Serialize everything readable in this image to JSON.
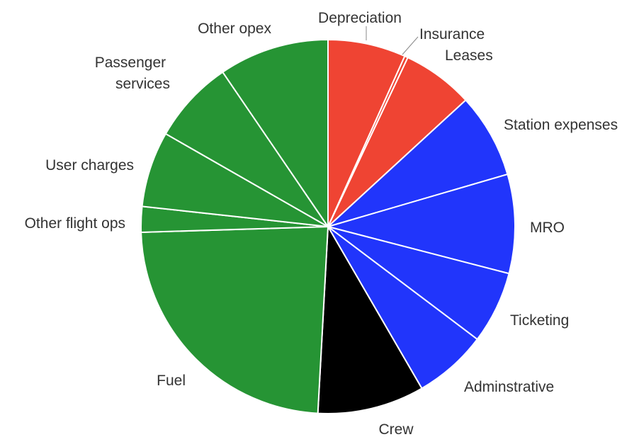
{
  "chart_data": {
    "type": "pie",
    "start_angle_deg": 0,
    "direction": "clockwise",
    "legend": "none",
    "slices": [
      {
        "label": "Depreciation",
        "value": 7.0,
        "color": "#ef4433"
      },
      {
        "label": "Insurance",
        "value": 0.3,
        "color": "#ef4433"
      },
      {
        "label": "Leases",
        "value": 6.4,
        "color": "#ef4433"
      },
      {
        "label": "Station expenses",
        "value": 7.6,
        "color": "#2135fb"
      },
      {
        "label": "MRO",
        "value": 8.9,
        "color": "#2135fb"
      },
      {
        "label": "Ticketing",
        "value": 6.5,
        "color": "#2135fb"
      },
      {
        "label": "Adminstrative",
        "value": 6.6,
        "color": "#2135fb"
      },
      {
        "label": "Crew",
        "value": 9.6,
        "color": "#000000"
      },
      {
        "label": "Fuel",
        "value": 24.6,
        "color": "#269434"
      },
      {
        "label": "Other flight ops",
        "value": 2.3,
        "color": "#269434"
      },
      {
        "label": "User charges",
        "value": 6.8,
        "color": "#269434"
      },
      {
        "label": "Passenger services",
        "value": 7.5,
        "color": "#269434"
      },
      {
        "label": "Other opex",
        "value": 9.9,
        "color": "#269434"
      }
    ]
  }
}
